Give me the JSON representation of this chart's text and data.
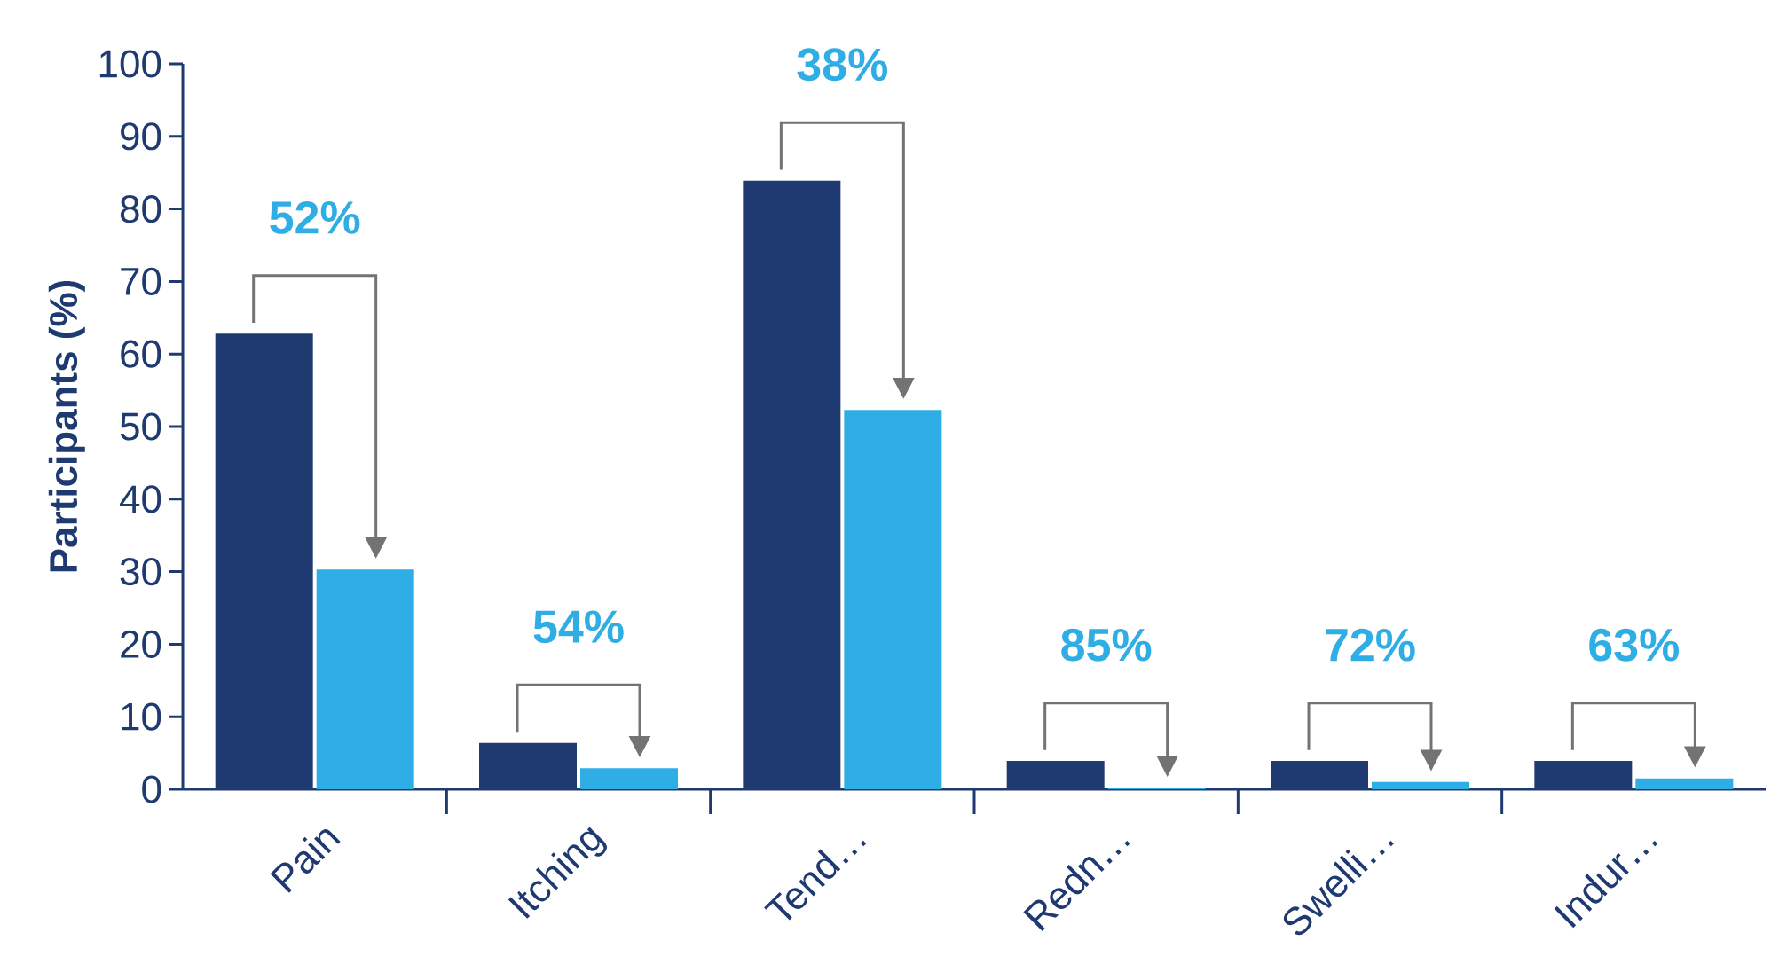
{
  "chart_data": {
    "type": "bar",
    "ylabel": "Participants (%)",
    "categories": [
      "Pain",
      "Itching",
      "Tend…",
      "Redn…",
      "Swelli…",
      "Indur…"
    ],
    "series": [
      {
        "color": "#1f3a70",
        "values": [
          62.8,
          6.4,
          83.9,
          3.9,
          3.9,
          3.9
        ]
      },
      {
        "color": "#2eaee4",
        "values": [
          30.3,
          2.9,
          52.3,
          0.2,
          1.0,
          1.5
        ]
      }
    ],
    "ylim": [
      0,
      100
    ],
    "yticks": [
      0,
      10,
      20,
      30,
      40,
      50,
      60,
      70,
      80,
      90,
      100
    ],
    "annotations": [
      "52%",
      "54%",
      "38%",
      "85%",
      "72%",
      "63%"
    ]
  }
}
